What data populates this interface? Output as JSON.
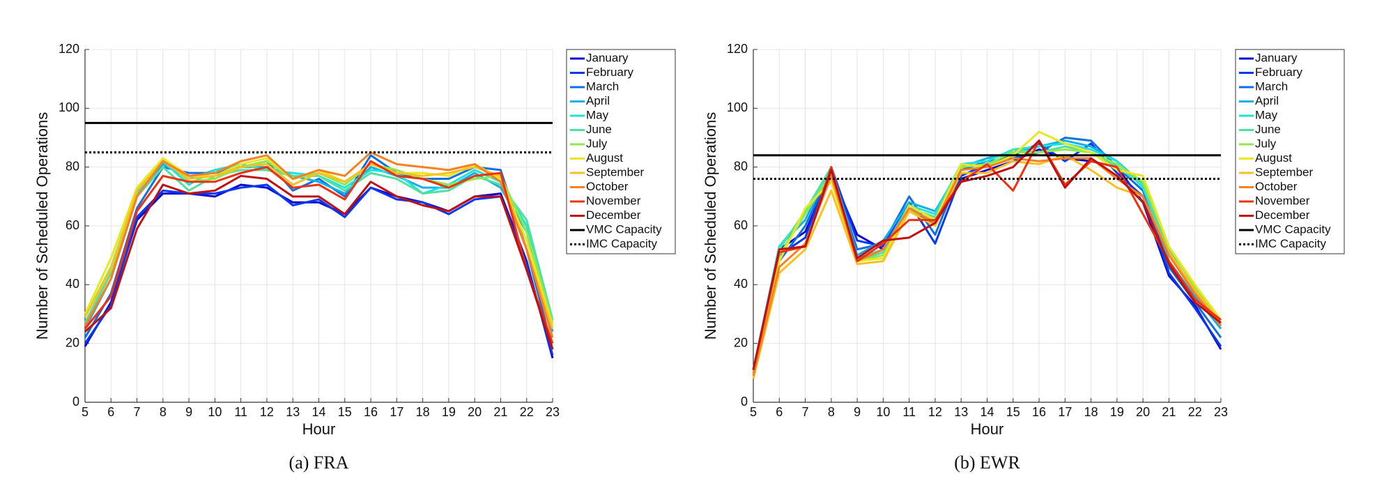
{
  "chart_data": [
    {
      "type": "line",
      "caption": "(a) FRA",
      "x_label": "Hour",
      "y_label": "Number of Scheduled Operations",
      "x": [
        5,
        6,
        7,
        8,
        9,
        10,
        11,
        12,
        13,
        14,
        15,
        16,
        17,
        18,
        19,
        20,
        21,
        22,
        23
      ],
      "xlim": [
        5,
        23
      ],
      "xticks": [
        5,
        6,
        7,
        8,
        9,
        10,
        11,
        12,
        13,
        14,
        15,
        16,
        17,
        18,
        19,
        20,
        21,
        22,
        23
      ],
      "ylim": [
        0,
        120
      ],
      "yticks": [
        0,
        20,
        40,
        60,
        80,
        100,
        120
      ],
      "grid": true,
      "legend": "outside-right",
      "series": [
        {
          "name": "January",
          "color": "#0a0ad0",
          "values": [
            19,
            34,
            62,
            71,
            71,
            70,
            74,
            73,
            68,
            68,
            64,
            73,
            70,
            68,
            65,
            70,
            71,
            48,
            15
          ]
        },
        {
          "name": "February",
          "color": "#0838f0",
          "values": [
            20,
            33,
            63,
            72,
            71,
            71,
            73,
            74,
            67,
            69,
            63,
            73,
            69,
            68,
            64,
            69,
            70,
            47,
            16
          ]
        },
        {
          "name": "March",
          "color": "#1070e0",
          "values": [
            22,
            37,
            66,
            80,
            78,
            78,
            80,
            82,
            72,
            76,
            70,
            84,
            78,
            76,
            76,
            80,
            79,
            52,
            18
          ]
        },
        {
          "name": "April",
          "color": "#10b0e8",
          "values": [
            25,
            42,
            70,
            81,
            76,
            79,
            80,
            80,
            77,
            75,
            71,
            80,
            77,
            73,
            73,
            78,
            73,
            58,
            24
          ]
        },
        {
          "name": "May",
          "color": "#20e0e0",
          "values": [
            27,
            44,
            71,
            82,
            74,
            79,
            81,
            79,
            78,
            77,
            73,
            79,
            78,
            71,
            74,
            79,
            75,
            60,
            28
          ]
        },
        {
          "name": "June",
          "color": "#50e0a0",
          "values": [
            27,
            44,
            70,
            80,
            72,
            77,
            79,
            79,
            77,
            77,
            72,
            78,
            76,
            71,
            72,
            77,
            74,
            62,
            28
          ]
        },
        {
          "name": "July",
          "color": "#90e850",
          "values": [
            29,
            46,
            72,
            83,
            75,
            76,
            80,
            82,
            76,
            78,
            74,
            81,
            79,
            76,
            74,
            76,
            77,
            58,
            27
          ]
        },
        {
          "name": "August",
          "color": "#e8e820",
          "values": [
            30,
            49,
            73,
            83,
            77,
            77,
            81,
            83,
            76,
            79,
            75,
            81,
            78,
            78,
            77,
            81,
            76,
            55,
            26
          ]
        },
        {
          "name": "September",
          "color": "#f8c020",
          "values": [
            29,
            45,
            72,
            82,
            76,
            77,
            80,
            81,
            74,
            78,
            75,
            81,
            78,
            77,
            78,
            80,
            77,
            52,
            25
          ]
        },
        {
          "name": "October",
          "color": "#f88020",
          "values": [
            26,
            42,
            70,
            82,
            77,
            78,
            82,
            84,
            76,
            79,
            77,
            85,
            81,
            80,
            79,
            81,
            75,
            52,
            22
          ]
        },
        {
          "name": "November",
          "color": "#f03010",
          "values": [
            25,
            36,
            65,
            77,
            75,
            75,
            78,
            80,
            73,
            74,
            69,
            82,
            77,
            76,
            73,
            77,
            78,
            45,
            20
          ]
        },
        {
          "name": "December",
          "color": "#c01010",
          "values": [
            24,
            32,
            59,
            74,
            71,
            72,
            77,
            76,
            70,
            70,
            64,
            75,
            70,
            67,
            65,
            70,
            70,
            45,
            18
          ]
        }
      ],
      "hlines": [
        {
          "name": "VMC Capacity",
          "value": 95,
          "color": "#000000",
          "dashed": false
        },
        {
          "name": "IMC Capacity",
          "value": 85,
          "color": "#000000",
          "dashed": true
        }
      ]
    },
    {
      "type": "line",
      "caption": "(b) EWR",
      "x_label": "Hour",
      "y_label": "Number of Scheduled Operations",
      "x": [
        5,
        6,
        7,
        8,
        9,
        10,
        11,
        12,
        13,
        14,
        15,
        16,
        17,
        18,
        19,
        20,
        21,
        22,
        23
      ],
      "xlim": [
        5,
        23
      ],
      "xticks": [
        5,
        6,
        7,
        8,
        9,
        10,
        11,
        12,
        13,
        14,
        15,
        16,
        17,
        18,
        19,
        20,
        21,
        22,
        23
      ],
      "ylim": [
        0,
        120
      ],
      "yticks": [
        0,
        20,
        40,
        60,
        80,
        100,
        120
      ],
      "grid": true,
      "legend": "outside-right",
      "series": [
        {
          "name": "January",
          "color": "#0a0ad0",
          "values": [
            10,
            52,
            58,
            78,
            57,
            52,
            65,
            61,
            76,
            79,
            82,
            86,
            83,
            82,
            80,
            68,
            43,
            33,
            18
          ]
        },
        {
          "name": "February",
          "color": "#0838f0",
          "values": [
            10,
            50,
            56,
            80,
            55,
            53,
            68,
            54,
            77,
            81,
            84,
            88,
            82,
            88,
            78,
            70,
            44,
            32,
            19
          ]
        },
        {
          "name": "March",
          "color": "#1070e0",
          "values": [
            10,
            48,
            60,
            79,
            52,
            54,
            70,
            57,
            79,
            82,
            83,
            85,
            90,
            89,
            80,
            72,
            46,
            34,
            22
          ]
        },
        {
          "name": "April",
          "color": "#10b0e8",
          "values": [
            11,
            53,
            62,
            80,
            50,
            55,
            68,
            65,
            80,
            83,
            85,
            87,
            89,
            87,
            82,
            74,
            48,
            36,
            25
          ]
        },
        {
          "name": "May",
          "color": "#20e0e0",
          "values": [
            10,
            53,
            64,
            80,
            49,
            52,
            67,
            64,
            81,
            82,
            86,
            87,
            88,
            86,
            82,
            73,
            50,
            38,
            26
          ]
        },
        {
          "name": "June",
          "color": "#50e0a0",
          "values": [
            10,
            52,
            65,
            80,
            48,
            51,
            66,
            63,
            81,
            80,
            86,
            85,
            87,
            85,
            80,
            74,
            52,
            37,
            27
          ]
        },
        {
          "name": "July",
          "color": "#90e850",
          "values": [
            9,
            50,
            64,
            78,
            48,
            50,
            65,
            62,
            80,
            81,
            85,
            85,
            86,
            85,
            81,
            75,
            53,
            39,
            27
          ]
        },
        {
          "name": "August",
          "color": "#e8e820",
          "values": [
            9,
            48,
            66,
            75,
            48,
            49,
            67,
            62,
            81,
            80,
            84,
            92,
            88,
            85,
            79,
            77,
            53,
            40,
            28
          ]
        },
        {
          "name": "September",
          "color": "#f8c020",
          "values": [
            8,
            44,
            52,
            72,
            47,
            48,
            65,
            60,
            78,
            78,
            82,
            81,
            84,
            79,
            73,
            70,
            51,
            38,
            27
          ]
        },
        {
          "name": "October",
          "color": "#f88020",
          "values": [
            9,
            46,
            54,
            77,
            48,
            52,
            66,
            61,
            79,
            80,
            83,
            82,
            83,
            83,
            76,
            70,
            50,
            37,
            26
          ]
        },
        {
          "name": "November",
          "color": "#f03010",
          "values": [
            11,
            51,
            53,
            80,
            48,
            54,
            62,
            62,
            75,
            81,
            72,
            89,
            74,
            82,
            80,
            64,
            48,
            35,
            28
          ]
        },
        {
          "name": "December",
          "color": "#c01010",
          "values": [
            11,
            52,
            53,
            79,
            49,
            55,
            56,
            61,
            75,
            77,
            80,
            89,
            73,
            83,
            77,
            68,
            47,
            34,
            27
          ]
        }
      ],
      "hlines": [
        {
          "name": "VMC Capacity",
          "value": 84,
          "color": "#000000",
          "dashed": false
        },
        {
          "name": "IMC Capacity",
          "value": 76,
          "color": "#000000",
          "dashed": true
        }
      ]
    }
  ]
}
